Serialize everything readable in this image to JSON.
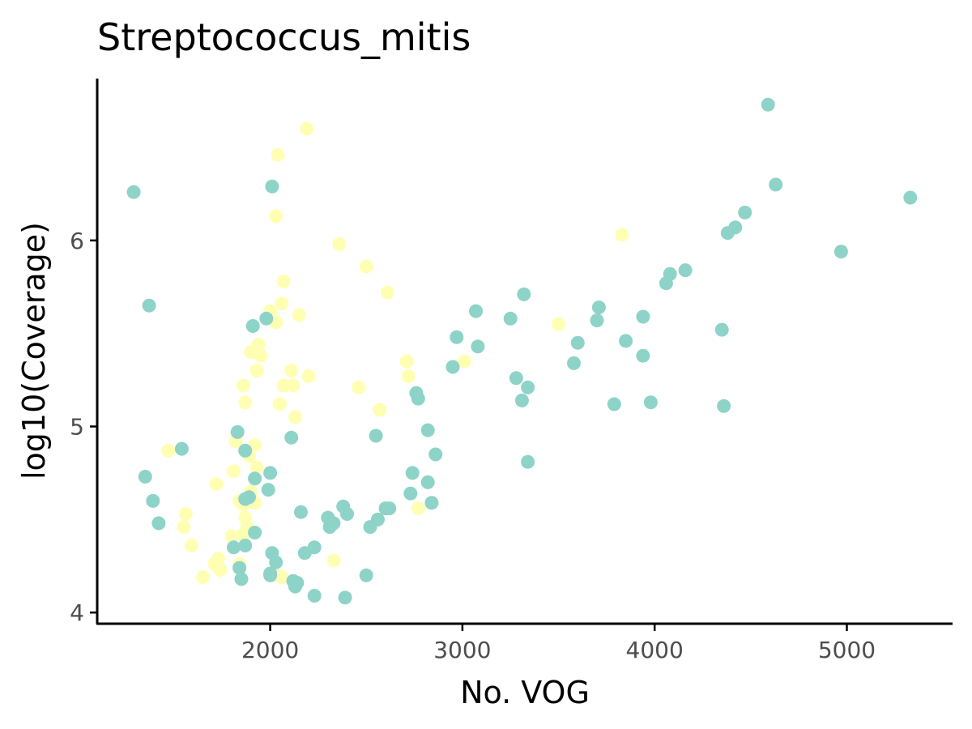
{
  "colors": {
    "series_a": "#8ed3c7",
    "series_b": "#ffffb3",
    "axis": "#000000",
    "tick_text": "#4d4d4d"
  },
  "chart_data": {
    "type": "scatter",
    "title": "Streptococcus_mitis",
    "xlabel": "No. VOG",
    "ylabel": "log10(Coverage)",
    "xlim": [
      1100,
      5550
    ],
    "ylim": [
      3.94,
      6.87
    ],
    "xticks": [
      2000,
      3000,
      4000,
      5000
    ],
    "yticks": [
      4,
      5,
      6
    ],
    "x_tick_labels": [
      "2000",
      "3000",
      "4000",
      "5000"
    ],
    "y_tick_labels": [
      "4",
      "5",
      "6"
    ],
    "grid": false,
    "legend": "none",
    "series": [
      {
        "color": "#ffffb3",
        "points": [
          [
            2190,
            6.6
          ],
          [
            2040,
            6.46
          ],
          [
            2030,
            6.13
          ],
          [
            2360,
            5.98
          ],
          [
            2500,
            5.86
          ],
          [
            2070,
            5.78
          ],
          [
            2610,
            5.72
          ],
          [
            3830,
            6.03
          ],
          [
            2060,
            5.66
          ],
          [
            2150,
            5.6
          ],
          [
            2000,
            5.62
          ],
          [
            2030,
            5.56
          ],
          [
            3500,
            5.55
          ],
          [
            1940,
            5.44
          ],
          [
            1900,
            5.4
          ],
          [
            1950,
            5.38
          ],
          [
            2710,
            5.35
          ],
          [
            3010,
            5.35
          ],
          [
            1930,
            5.3
          ],
          [
            2110,
            5.3
          ],
          [
            2200,
            5.27
          ],
          [
            2720,
            5.27
          ],
          [
            2070,
            5.22
          ],
          [
            2120,
            5.22
          ],
          [
            1860,
            5.22
          ],
          [
            2460,
            5.21
          ],
          [
            2570,
            5.09
          ],
          [
            1870,
            5.13
          ],
          [
            2050,
            5.12
          ],
          [
            2130,
            5.05
          ],
          [
            1820,
            4.92
          ],
          [
            1920,
            4.9
          ],
          [
            1470,
            4.87
          ],
          [
            1890,
            4.84
          ],
          [
            1930,
            4.78
          ],
          [
            1810,
            4.76
          ],
          [
            1720,
            4.69
          ],
          [
            1900,
            4.65
          ],
          [
            1840,
            4.6
          ],
          [
            1920,
            4.59
          ],
          [
            1860,
            4.58
          ],
          [
            2770,
            4.56
          ],
          [
            1560,
            4.53
          ],
          [
            1870,
            4.51
          ],
          [
            1880,
            4.46
          ],
          [
            1550,
            4.46
          ],
          [
            1860,
            4.42
          ],
          [
            1800,
            4.41
          ],
          [
            1590,
            4.36
          ],
          [
            1730,
            4.29
          ],
          [
            2330,
            4.28
          ],
          [
            1710,
            4.26
          ],
          [
            1840,
            4.26
          ],
          [
            1740,
            4.23
          ],
          [
            1650,
            4.19
          ],
          [
            2060,
            4.19
          ],
          [
            2030,
            4.2
          ]
        ]
      },
      {
        "color": "#8ed3c7",
        "points": [
          [
            4590,
            6.73
          ],
          [
            4630,
            6.3
          ],
          [
            5330,
            6.23
          ],
          [
            1290,
            6.26
          ],
          [
            2010,
            6.29
          ],
          [
            4470,
            6.15
          ],
          [
            4420,
            6.07
          ],
          [
            4380,
            6.04
          ],
          [
            4970,
            5.94
          ],
          [
            4160,
            5.84
          ],
          [
            4080,
            5.82
          ],
          [
            4060,
            5.77
          ],
          [
            1370,
            5.65
          ],
          [
            3320,
            5.71
          ],
          [
            3070,
            5.62
          ],
          [
            3710,
            5.64
          ],
          [
            3250,
            5.58
          ],
          [
            3940,
            5.59
          ],
          [
            3700,
            5.57
          ],
          [
            1980,
            5.58
          ],
          [
            1910,
            5.54
          ],
          [
            2970,
            5.48
          ],
          [
            3850,
            5.46
          ],
          [
            3600,
            5.45
          ],
          [
            4350,
            5.52
          ],
          [
            3080,
            5.43
          ],
          [
            3940,
            5.38
          ],
          [
            3580,
            5.34
          ],
          [
            2950,
            5.32
          ],
          [
            3280,
            5.26
          ],
          [
            3340,
            5.21
          ],
          [
            2770,
            5.15
          ],
          [
            2760,
            5.18
          ],
          [
            3310,
            5.14
          ],
          [
            3790,
            5.12
          ],
          [
            3980,
            5.13
          ],
          [
            4360,
            5.11
          ],
          [
            1540,
            4.88
          ],
          [
            1830,
            4.97
          ],
          [
            2820,
            4.98
          ],
          [
            2550,
            4.95
          ],
          [
            2110,
            4.94
          ],
          [
            2860,
            4.85
          ],
          [
            1870,
            4.87
          ],
          [
            3340,
            4.81
          ],
          [
            2000,
            4.75
          ],
          [
            2740,
            4.75
          ],
          [
            1350,
            4.73
          ],
          [
            1920,
            4.72
          ],
          [
            2820,
            4.7
          ],
          [
            1990,
            4.66
          ],
          [
            1890,
            4.62
          ],
          [
            1870,
            4.61
          ],
          [
            2730,
            4.64
          ],
          [
            1390,
            4.6
          ],
          [
            2840,
            4.59
          ],
          [
            2380,
            4.57
          ],
          [
            2600,
            4.56
          ],
          [
            2620,
            4.56
          ],
          [
            2160,
            4.54
          ],
          [
            2400,
            4.53
          ],
          [
            2300,
            4.51
          ],
          [
            2560,
            4.5
          ],
          [
            1420,
            4.48
          ],
          [
            2330,
            4.48
          ],
          [
            2310,
            4.46
          ],
          [
            2520,
            4.46
          ],
          [
            1920,
            4.43
          ],
          [
            1870,
            4.36
          ],
          [
            1810,
            4.35
          ],
          [
            2230,
            4.35
          ],
          [
            2010,
            4.32
          ],
          [
            2180,
            4.32
          ],
          [
            2030,
            4.27
          ],
          [
            1840,
            4.24
          ],
          [
            2000,
            4.21
          ],
          [
            2000,
            4.2
          ],
          [
            2500,
            4.2
          ],
          [
            1850,
            4.18
          ],
          [
            2120,
            4.17
          ],
          [
            2140,
            4.16
          ],
          [
            2130,
            4.14
          ],
          [
            2230,
            4.09
          ],
          [
            2390,
            4.08
          ]
        ]
      }
    ]
  }
}
